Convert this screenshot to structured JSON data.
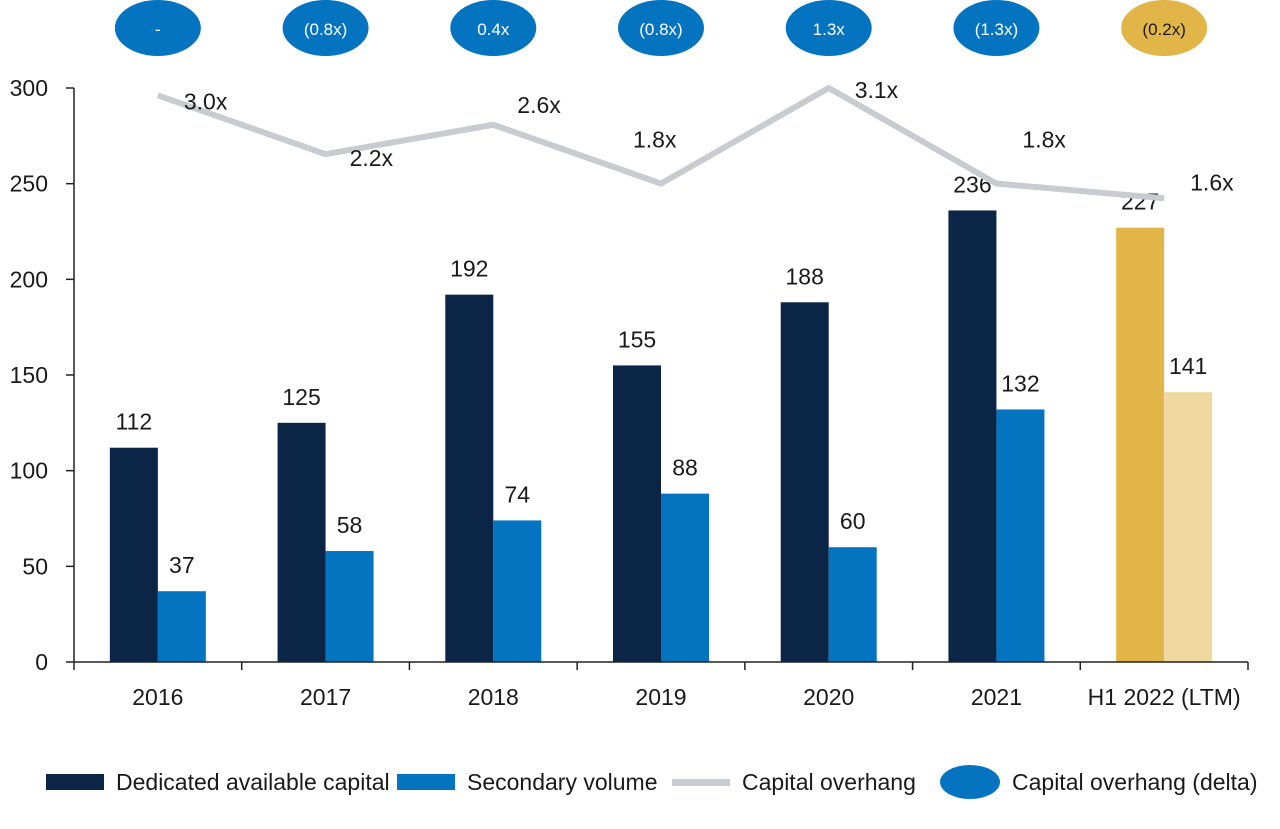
{
  "chart_data": {
    "type": "bar",
    "categories": [
      "2016",
      "2017",
      "2018",
      "2019",
      "2020",
      "2021",
      "H1 2022 (LTM)"
    ],
    "ylim": [
      0,
      300
    ],
    "yticks": [
      0,
      50,
      100,
      150,
      200,
      250,
      300
    ],
    "series": [
      {
        "name": "Dedicated available capital",
        "values": [
          112,
          125,
          192,
          155,
          188,
          236,
          227
        ],
        "labels": [
          "112",
          "125",
          "192",
          "155",
          "188",
          "236",
          "227"
        ],
        "color": "#0b2546",
        "highlight_color": "#e1b548"
      },
      {
        "name": "Secondary volume",
        "values": [
          37,
          58,
          74,
          88,
          60,
          132,
          141
        ],
        "labels": [
          "37",
          "58",
          "74",
          "88",
          "60",
          "132",
          "141"
        ],
        "color": "#0474c0",
        "highlight_color": "#f0d9a0"
      },
      {
        "name": "Capital overhang",
        "type": "line",
        "values": [
          3.0,
          2.2,
          2.6,
          1.8,
          3.1,
          1.8,
          1.6
        ],
        "labels": [
          "3.0x",
          "2.2x",
          "2.6x",
          "1.8x",
          "3.1x",
          "1.8x",
          "1.6x"
        ],
        "color": "#c8ccd0"
      },
      {
        "name": "Capital overhang  (delta)",
        "type": "badge",
        "labels": [
          "-",
          "(0.8x)",
          "0.4x",
          "(0.8x)",
          "1.3x",
          "(1.3x)",
          "(0.2x)"
        ],
        "color": "#0474c0",
        "highlight_color": "#e1b548"
      }
    ],
    "highlight_category": "H1 2022 (LTM)",
    "grid": false,
    "legend_position": "bottom"
  },
  "legend": [
    {
      "label": "Dedicated available capital",
      "shape": "rect",
      "color": "#0b2546"
    },
    {
      "label": "Secondary volume",
      "shape": "rect",
      "color": "#0474c0"
    },
    {
      "label": "Capital overhang",
      "shape": "line",
      "color": "#c8ccd0"
    },
    {
      "label": "Capital overhang  (delta)",
      "shape": "oval",
      "color": "#0474c0"
    }
  ]
}
